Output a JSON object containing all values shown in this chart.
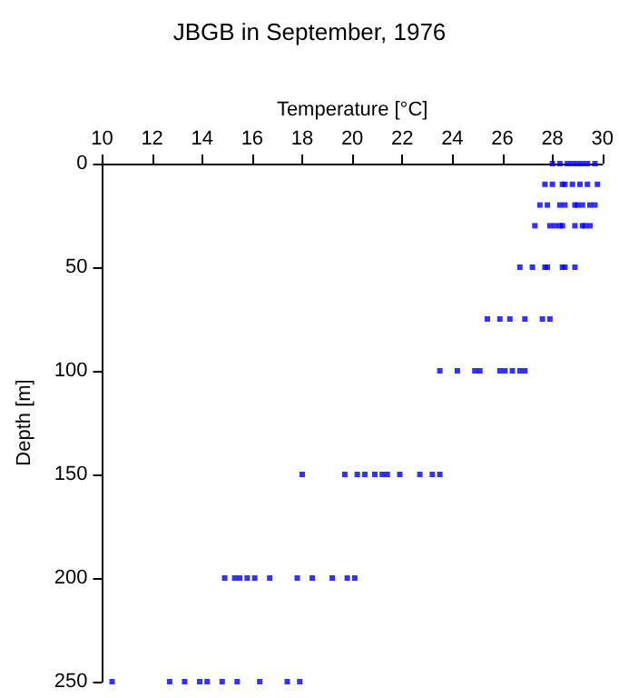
{
  "chart_data": {
    "type": "scatter",
    "title": "JBGB in September, 1976",
    "xlabel": "Temperature [°C]",
    "ylabel": "Depth [m]",
    "xlim": [
      10,
      30
    ],
    "xticks": [
      10,
      12,
      14,
      16,
      18,
      20,
      22,
      24,
      26,
      28,
      30
    ],
    "ylim": [
      250,
      0
    ],
    "yticks": [
      0,
      50,
      100,
      150,
      200,
      250
    ],
    "marker": "square",
    "series": [
      {
        "color": "#0000ff",
        "x": [
          28.0,
          28.3,
          28.6,
          28.8,
          29.0,
          29.2,
          29.4,
          29.7,
          27.7,
          28.0,
          28.4,
          28.5,
          28.8,
          29.1,
          29.4,
          29.8,
          27.5,
          27.8,
          28.3,
          28.5,
          28.9,
          29.0,
          29.2,
          29.5,
          29.7,
          27.3,
          27.9,
          28.1,
          28.3,
          28.4,
          28.9,
          29.2,
          29.3,
          29.5,
          26.7,
          27.2,
          27.7,
          27.8,
          28.4,
          28.5,
          28.9,
          25.4,
          25.9,
          26.3,
          26.9,
          27.6,
          27.9,
          23.5,
          24.2,
          24.9,
          25.1,
          25.9,
          26.1,
          26.4,
          26.7,
          26.9,
          18.0,
          19.7,
          20.2,
          20.5,
          20.9,
          21.2,
          21.4,
          21.9,
          22.7,
          23.2,
          23.5,
          14.9,
          15.3,
          15.5,
          15.8,
          16.1,
          16.7,
          17.8,
          18.4,
          19.2,
          19.8,
          20.1,
          10.4,
          12.7,
          13.3,
          13.9,
          14.2,
          14.8,
          15.4,
          16.3,
          17.4,
          17.9
        ],
        "values": [
          0,
          0,
          0,
          0,
          0,
          0,
          0,
          0,
          10,
          10,
          10,
          10,
          10,
          10,
          10,
          10,
          20,
          20,
          20,
          20,
          20,
          20,
          20,
          20,
          20,
          30,
          30,
          30,
          30,
          30,
          30,
          30,
          30,
          30,
          50,
          50,
          50,
          50,
          50,
          50,
          50,
          75,
          75,
          75,
          75,
          75,
          75,
          100,
          100,
          100,
          100,
          100,
          100,
          100,
          100,
          100,
          150,
          150,
          150,
          150,
          150,
          150,
          150,
          150,
          150,
          150,
          150,
          200,
          200,
          200,
          200,
          200,
          200,
          200,
          200,
          200,
          200,
          200,
          250,
          250,
          250,
          250,
          250,
          250,
          250,
          250,
          250,
          250
        ]
      }
    ]
  }
}
